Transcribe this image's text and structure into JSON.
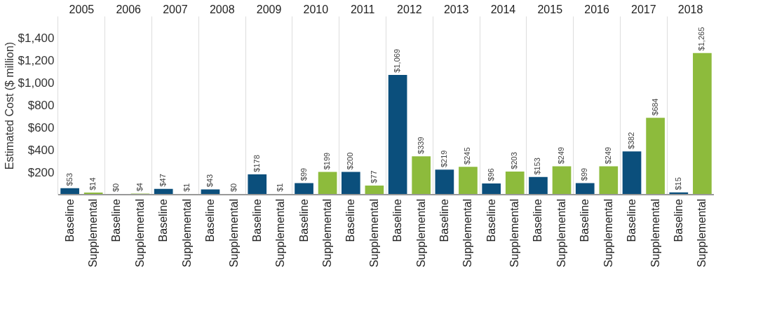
{
  "chart_data": {
    "type": "bar",
    "ylabel": "Estimated Cost  ($ million)",
    "categories": [
      "2005",
      "2006",
      "2007",
      "2008",
      "2009",
      "2010",
      "2011",
      "2012",
      "2013",
      "2014",
      "2015",
      "2016",
      "2017",
      "2018"
    ],
    "series": [
      {
        "name": "Baseline",
        "color": "#0b4f7c",
        "values": [
          53,
          0,
          47,
          43,
          178,
          99,
          200,
          1069,
          219,
          96,
          153,
          99,
          382,
          15
        ],
        "value_labels": [
          "$53",
          "$0",
          "$47",
          "$43",
          "$178",
          "$99",
          "$200",
          "$1,069",
          "$219",
          "$96",
          "$153",
          "$99",
          "$382",
          "$15"
        ]
      },
      {
        "name": "Supplemental",
        "color": "#8dbb3c",
        "values": [
          14,
          4,
          1,
          0,
          1,
          199,
          77,
          339,
          245,
          203,
          249,
          249,
          684,
          1265
        ],
        "value_labels": [
          "$14",
          "$4",
          "$1",
          "$0",
          "$1",
          "$199",
          "$77",
          "$339",
          "$245",
          "$203",
          "$249",
          "$249",
          "$684",
          "$1,265"
        ]
      }
    ],
    "ylim": [
      0,
      1600
    ],
    "yticks": [
      {
        "value": 200,
        "label": "$200"
      },
      {
        "value": 400,
        "label": "$400"
      },
      {
        "value": 600,
        "label": "$600"
      },
      {
        "value": 800,
        "label": "$800"
      },
      {
        "value": 1000,
        "label": "$1,000"
      },
      {
        "value": 1200,
        "label": "$1,200"
      },
      {
        "value": 1400,
        "label": "$1,400"
      }
    ],
    "grid": "x",
    "legend": false
  }
}
